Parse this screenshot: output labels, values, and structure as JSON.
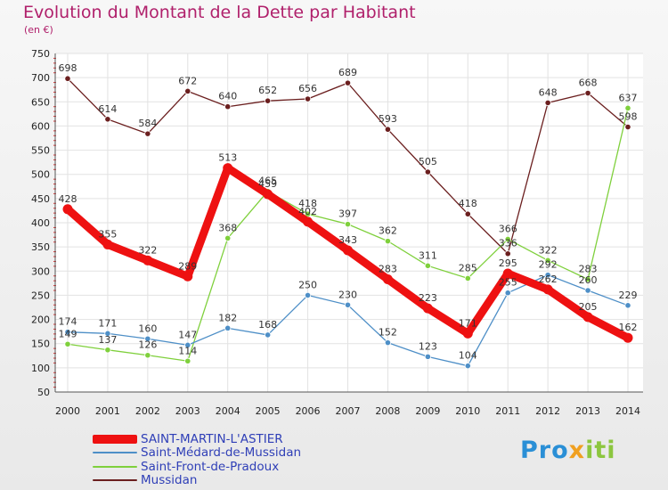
{
  "header": {
    "title": "Evolution du Montant de la Dette par Habitant",
    "unit": "(en €)"
  },
  "brand": {
    "part1": "Pro",
    "part2": "x",
    "part3": "iti"
  },
  "chart_data": {
    "type": "line",
    "title": "Evolution du Montant de la Dette par Habitant",
    "ylabel": "(en €)",
    "xlabel": "",
    "x": [
      "2000",
      "2001",
      "2002",
      "2003",
      "2004",
      "2005",
      "2006",
      "2007",
      "2008",
      "2009",
      "2010",
      "2011",
      "2012",
      "2013",
      "2014"
    ],
    "y_ticks": [
      50,
      100,
      150,
      200,
      250,
      300,
      350,
      400,
      450,
      500,
      550,
      600,
      650,
      700,
      750
    ],
    "ylim": [
      50,
      750
    ],
    "grid": true,
    "legend_position": "bottom-left",
    "series": [
      {
        "name": "SAINT-MARTIN-L'ASTIER",
        "color": "#ee1111",
        "values": [
          428,
          355,
          322,
          289,
          513,
          459,
          402,
          343,
          283,
          223,
          171,
          295,
          262,
          205,
          162
        ]
      },
      {
        "name": "Saint-Médard-de-Mussidan",
        "color": "#4e8fc7",
        "values": [
          174,
          171,
          160,
          147,
          182,
          168,
          250,
          230,
          152,
          123,
          104,
          255,
          292,
          260,
          229
        ]
      },
      {
        "name": "Saint-Front-de-Pradoux",
        "color": "#7fd03c",
        "values": [
          149,
          137,
          126,
          114,
          368,
          465,
          418,
          397,
          362,
          311,
          285,
          366,
          322,
          283,
          637
        ]
      },
      {
        "name": "Mussidan",
        "color": "#6b1f1f",
        "values": [
          698,
          614,
          584,
          672,
          640,
          652,
          656,
          689,
          593,
          505,
          418,
          336,
          648,
          668,
          598
        ]
      }
    ]
  }
}
